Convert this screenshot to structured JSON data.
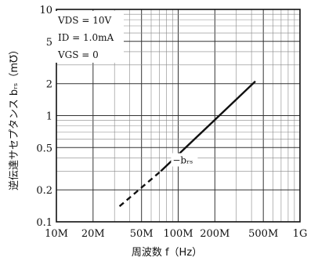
{
  "chart_data": {
    "type": "line",
    "x_scale": "log",
    "y_scale": "log",
    "xlim_hz": [
      10000000,
      1000000000
    ],
    "ylim_ms": [
      0.1,
      10
    ],
    "x_ticks": [
      {
        "value": 10000000,
        "label": "10M"
      },
      {
        "value": 20000000,
        "label": "20M"
      },
      {
        "value": 50000000,
        "label": "50M"
      },
      {
        "value": 100000000,
        "label": "100M"
      },
      {
        "value": 200000000,
        "label": "200M"
      },
      {
        "value": 500000000,
        "label": "500M"
      },
      {
        "value": 1000000000,
        "label": "1G"
      }
    ],
    "y_ticks": [
      {
        "value": 0.1,
        "label": "0.1"
      },
      {
        "value": 0.2,
        "label": "0.2"
      },
      {
        "value": 0.5,
        "label": "0.5"
      },
      {
        "value": 1,
        "label": "1"
      },
      {
        "value": 2,
        "label": "2"
      },
      {
        "value": 5,
        "label": "5"
      },
      {
        "value": 10,
        "label": "10"
      }
    ],
    "xlabel": "周波数 f（Hz）",
    "ylabel": "逆伝達サセプタンス bᵣₛ（m℧）",
    "conditions": [
      "VDS = 10V",
      "ID = 1.0mA",
      "VGS = 0"
    ],
    "series": [
      {
        "name": "−bᵣₛ",
        "style": "dashed",
        "x": [
          33000000,
          72000000
        ],
        "y": [
          0.14,
          0.3
        ]
      },
      {
        "name": "−bᵣₛ",
        "style": "solid",
        "x": [
          72000000,
          430000000
        ],
        "y": [
          0.3,
          2.1
        ]
      }
    ],
    "annotation": {
      "text": "−bᵣₛ",
      "x": 90000000,
      "y": 0.38
    },
    "grid": true
  }
}
